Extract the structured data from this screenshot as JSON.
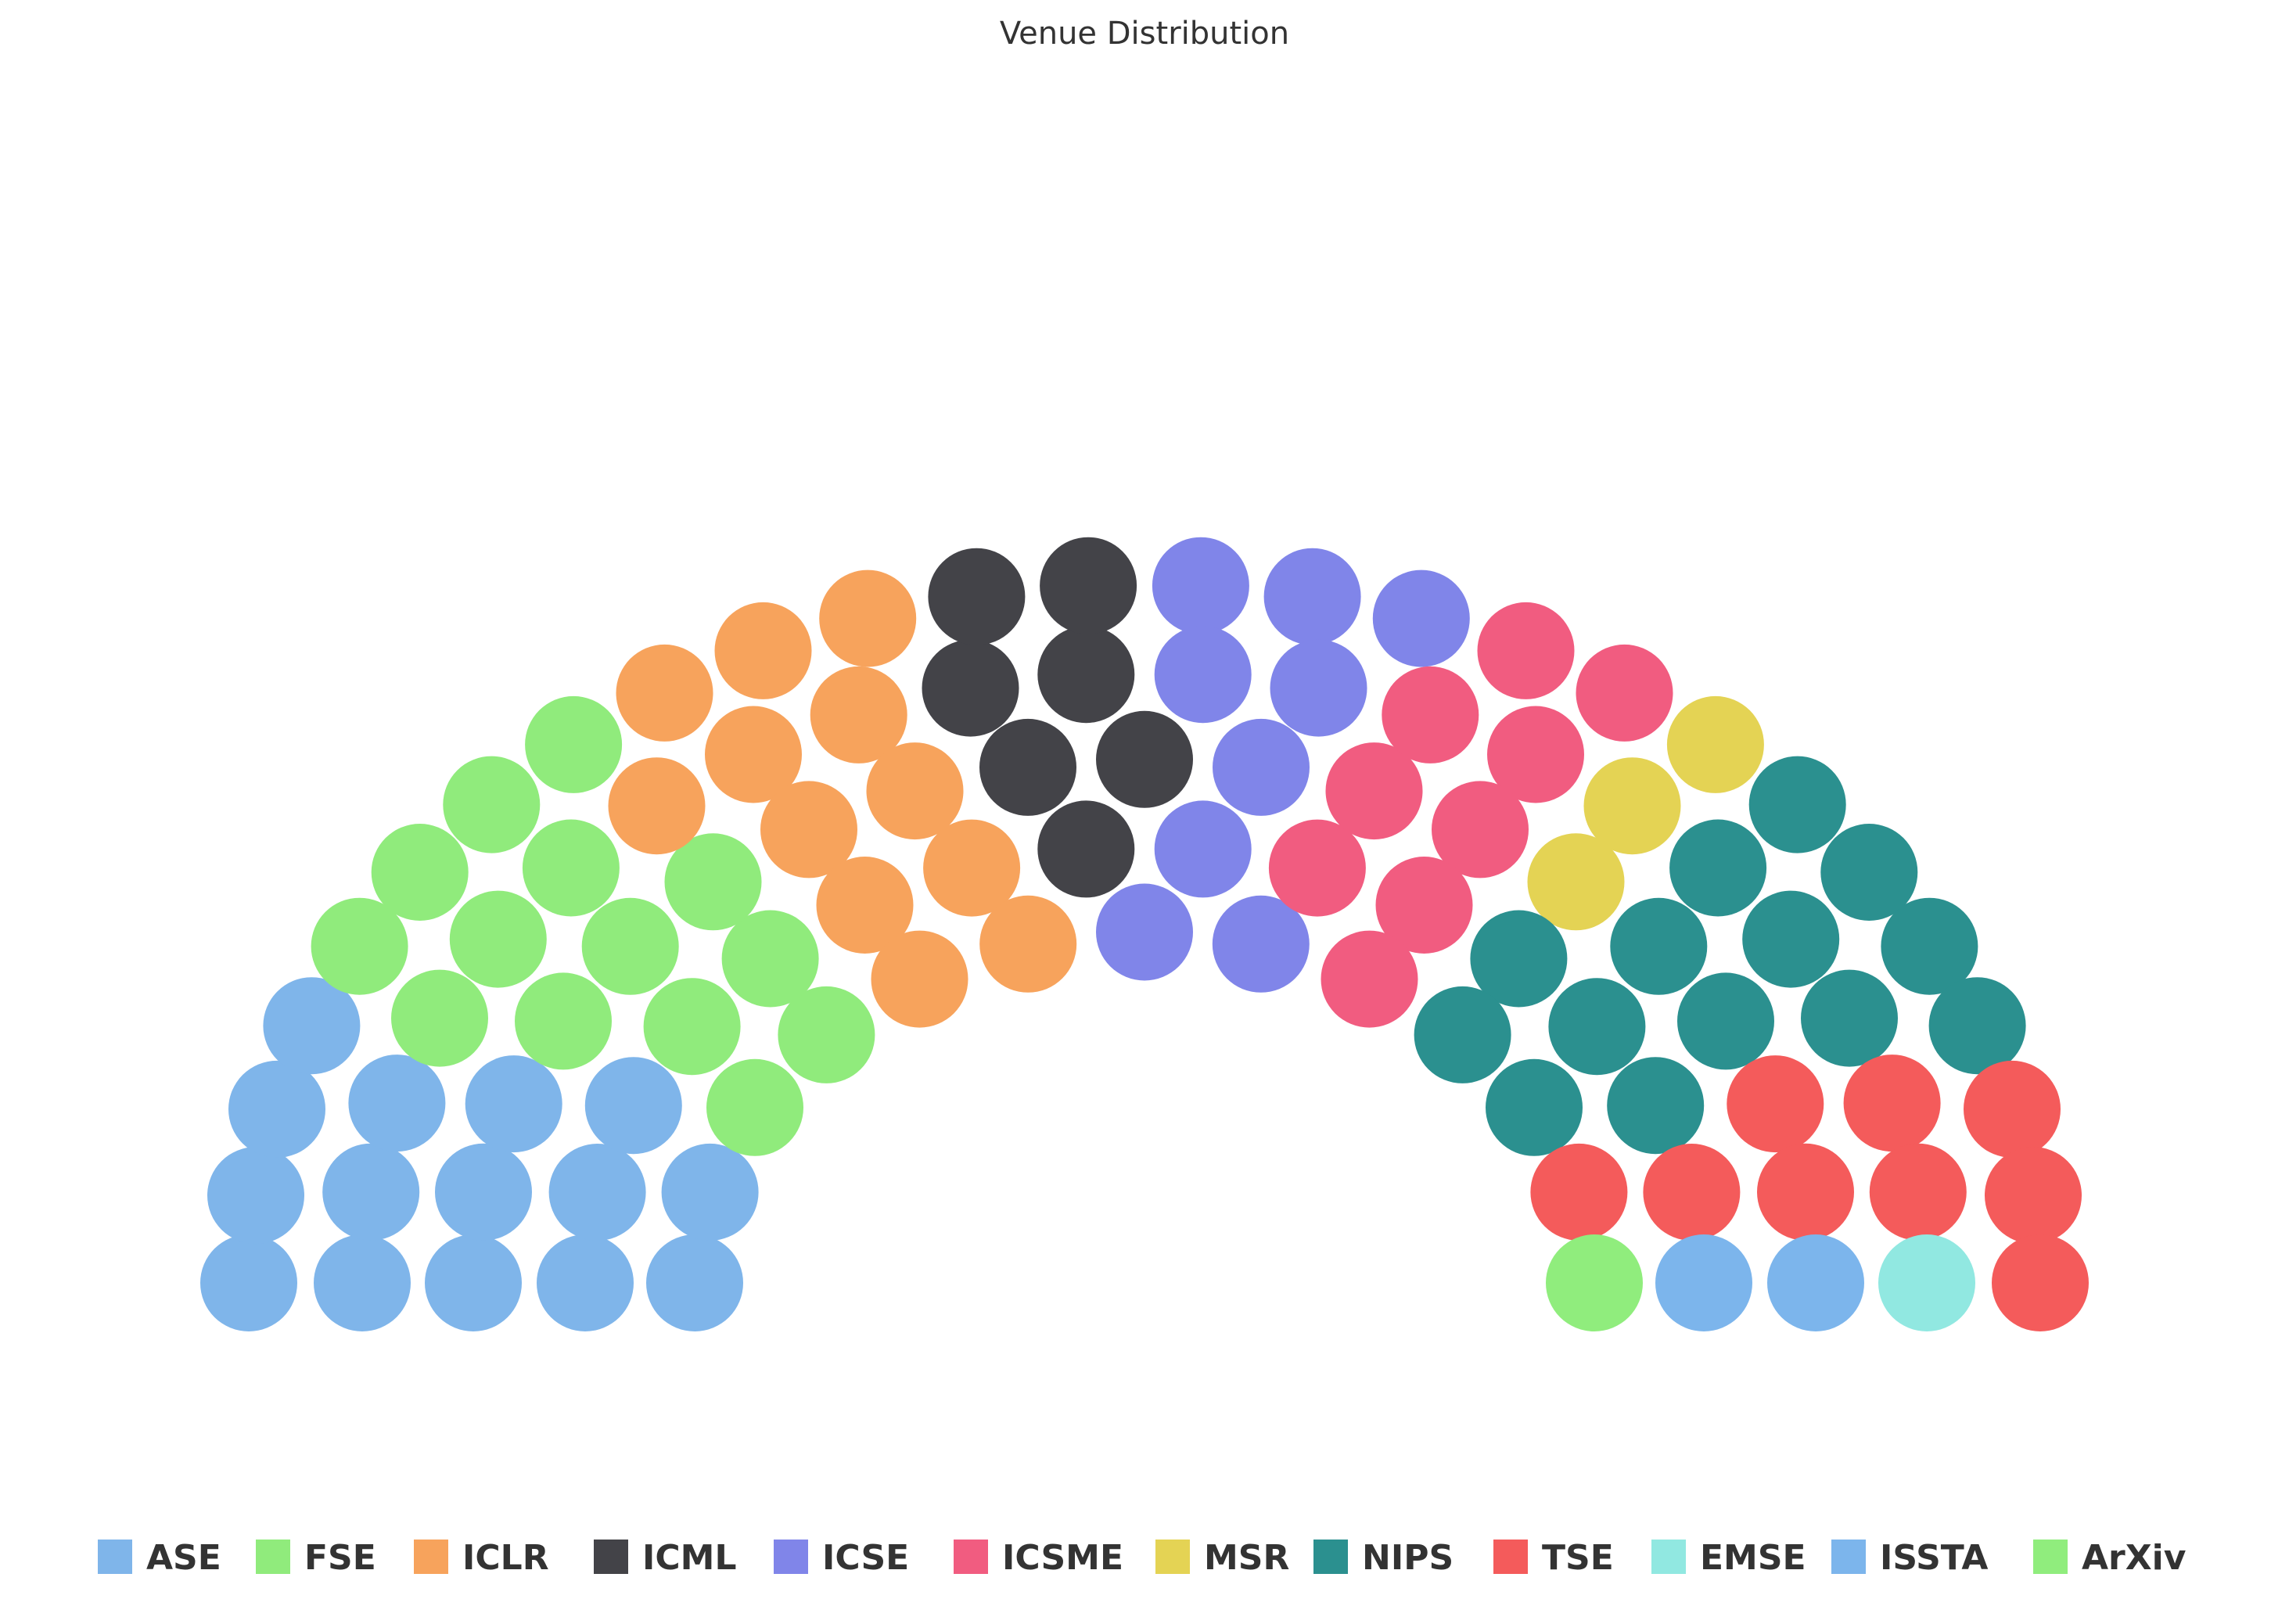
{
  "chart_data": {
    "type": "parliament",
    "title": "Venue Distribution",
    "series": [
      {
        "name": "ASE",
        "count": 15,
        "color": "#7FB5EA"
      },
      {
        "name": "FSE",
        "count": 14,
        "color": "#90EB7C"
      },
      {
        "name": "ICLR",
        "count": 12,
        "color": "#F7A35C"
      },
      {
        "name": "ICML",
        "count": 7,
        "color": "#434348"
      },
      {
        "name": "ICSE",
        "count": 9,
        "color": "#8085E9"
      },
      {
        "name": "ICSME",
        "count": 9,
        "color": "#F15C80"
      },
      {
        "name": "MSR",
        "count": 3,
        "color": "#E4D354"
      },
      {
        "name": "NIPS",
        "count": 14,
        "color": "#2B908F"
      },
      {
        "name": "TSE",
        "count": 9,
        "color": "#F45B5B"
      },
      {
        "name": "EMSE",
        "count": 1,
        "color": "#91E8E1"
      },
      {
        "name": "ISSTA",
        "count": 2,
        "color": "#7CB5EC"
      },
      {
        "name": "ArXiv",
        "count": 1,
        "color": "#90ED7D"
      }
    ],
    "legend_position": "bottom"
  }
}
